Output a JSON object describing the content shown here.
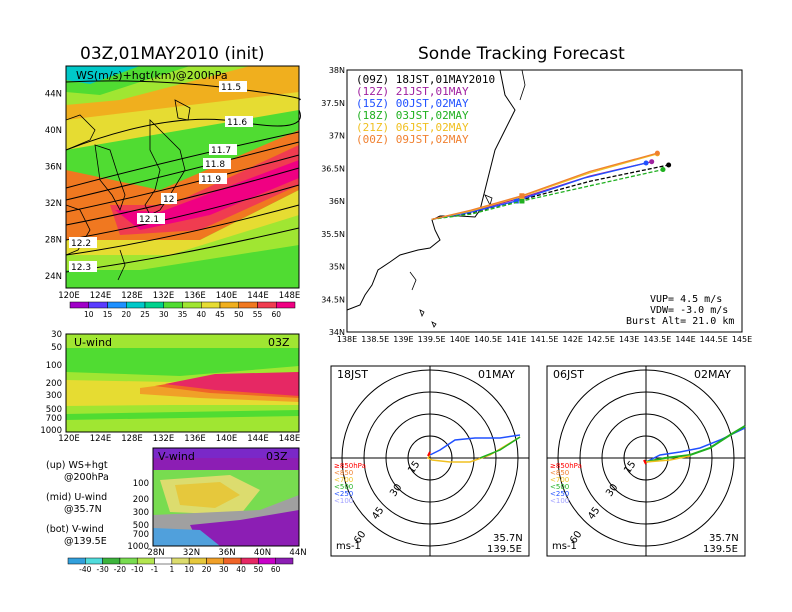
{
  "titles": {
    "left": "03Z,01MAY2010 (init)",
    "right": "Sonde Tracking Forecast"
  },
  "chart_data": [
    {
      "type": "heatmap",
      "panel": "ws_map",
      "title": "WS(m/s)+hgt(km)@200hPa",
      "x_ticks": [
        "120E",
        "124E",
        "128E",
        "132E",
        "136E",
        "140E",
        "144E",
        "148E"
      ],
      "y_ticks": [
        "24N",
        "28N",
        "32N",
        "36N",
        "40N",
        "44N"
      ],
      "xlim": [
        120,
        150
      ],
      "ylim": [
        22,
        48
      ],
      "contour_labels": [
        "11.5",
        "11.6",
        "11.7",
        "11.8",
        "11.9",
        "12",
        "12.1",
        "12.2",
        "12.3"
      ],
      "colorbar_ticks": [
        "10",
        "15",
        "20",
        "25",
        "30",
        "35",
        "40",
        "45",
        "50",
        "55",
        "60"
      ]
    },
    {
      "type": "heatmap",
      "panel": "u_wind",
      "title": "U-wind",
      "time_label": "03Z",
      "x_ticks": [
        "120E",
        "124E",
        "128E",
        "132E",
        "136E",
        "140E",
        "144E",
        "148E"
      ],
      "y_ticks": [
        "30",
        "50",
        "100",
        "200",
        "300",
        "500",
        "700",
        "1000"
      ]
    },
    {
      "type": "heatmap",
      "panel": "v_wind",
      "title": "V-wind",
      "time_label": "03Z",
      "x_ticks": [
        "28N",
        "32N",
        "36N",
        "40N",
        "44N"
      ],
      "y_ticks": [
        "100",
        "200",
        "300",
        "500",
        "700",
        "1000"
      ],
      "colorbar_ticks": [
        "-40",
        "-30",
        "-20",
        "-10",
        "-1",
        "1",
        "10",
        "20",
        "30",
        "40",
        "50",
        "60"
      ]
    },
    {
      "type": "line",
      "panel": "tracking",
      "x_ticks": [
        "138E",
        "138.5E",
        "139E",
        "139.5E",
        "140E",
        "140.5E",
        "141E",
        "141.5E",
        "142E",
        "142.5E",
        "143E",
        "143.5E",
        "144E",
        "144.5E",
        "145E"
      ],
      "y_ticks": [
        "34N",
        "34.5N",
        "35N",
        "35.5N",
        "36N",
        "36.5N",
        "37N",
        "37.5N",
        "38N"
      ],
      "xlim": [
        138,
        145
      ],
      "ylim": [
        34,
        38
      ],
      "series": [
        {
          "name": "(09Z) 18JST,01MAY2010",
          "color": "#000000",
          "x": [
            139.5,
            140.2,
            141.1,
            142.3,
            143.7
          ],
          "y": [
            35.72,
            35.82,
            36.02,
            36.3,
            36.55
          ]
        },
        {
          "name": "(12Z) 21JST,01MAY",
          "color": "#a020a0",
          "x": [
            139.5,
            140.2,
            141.1,
            142.3,
            143.4
          ],
          "y": [
            35.72,
            35.84,
            36.05,
            36.38,
            36.6
          ]
        },
        {
          "name": "(15Z) 00JST,02MAY",
          "color": "#2050ff",
          "x": [
            139.5,
            140.2,
            141.0,
            142.2,
            143.3
          ],
          "y": [
            35.72,
            35.83,
            36.0,
            36.35,
            36.58
          ]
        },
        {
          "name": "(18Z) 03JST,02MAY",
          "color": "#20b020",
          "x": [
            139.5,
            140.2,
            141.1,
            142.4,
            143.6
          ],
          "y": [
            35.72,
            35.8,
            36.0,
            36.25,
            36.48
          ]
        },
        {
          "name": "(21Z) 06JST,02MAY",
          "color": "#f0c020",
          "x": [
            139.5,
            140.2,
            141.1,
            142.3,
            143.5
          ],
          "y": [
            35.72,
            35.85,
            36.07,
            36.43,
            36.72
          ]
        },
        {
          "name": "(00Z) 09JST,02MAY",
          "color": "#f08030",
          "x": [
            139.5,
            140.2,
            141.1,
            142.3,
            143.5
          ],
          "y": [
            35.72,
            35.86,
            36.08,
            36.45,
            36.73
          ]
        }
      ],
      "annotations": [
        "VUP= 4.5 m/s",
        "VDW= -3.0 m/s",
        "Burst Alt= 21.0 km"
      ]
    }
  ],
  "ws_contours": [
    {
      "label": "11.5",
      "lat": 46.2
    },
    {
      "label": "11.6",
      "lat": 41.6
    },
    {
      "label": "11.7",
      "lat": 38.0
    },
    {
      "label": "11.8",
      "lat": 36.2
    },
    {
      "label": "11.9",
      "lat": 34.6
    },
    {
      "label": "12",
      "lat": 32.4
    },
    {
      "label": "12.1",
      "lat": 30.0
    },
    {
      "label": "12.2",
      "lat": 27.4
    },
    {
      "label": "12.3",
      "lat": 24.6
    }
  ],
  "ws_bar_colors": [
    "#a000c8",
    "#5a3cff",
    "#1e90ff",
    "#00c8c8",
    "#00d28c",
    "#50dc32",
    "#a0e632",
    "#e6dc32",
    "#f0af1e",
    "#f07820",
    "#f03c50",
    "#f00082"
  ],
  "v_bar_colors": [
    "#32a0dc",
    "#50dcdc",
    "#3cb43c",
    "#78dc50",
    "#b4e650",
    "#ffffff",
    "#dcdc6e",
    "#e6c83c",
    "#f0a028",
    "#f06428",
    "#e62864",
    "#c800c8",
    "#8c1eb4"
  ],
  "hodographs": [
    {
      "jst": "18JST",
      "date": "01MAY",
      "lat": "35.7N",
      "lon": "139.5E",
      "unit": "ms-1",
      "rings": [
        "15",
        "30",
        "45",
        "60"
      ],
      "legend": [
        "≥850hPa",
        "<850",
        "<700",
        "<500",
        "<250",
        "<100"
      ]
    },
    {
      "jst": "06JST",
      "date": "02MAY",
      "lat": "35.7N",
      "lon": "139.5E",
      "unit": "ms-1",
      "rings": [
        "15",
        "30",
        "45",
        "60"
      ],
      "legend": [
        "≥850hPa",
        "<850",
        "<700",
        "<500",
        "<250",
        "<100"
      ]
    }
  ],
  "notes": [
    {
      "head": "(up) WS+hgt",
      "sub": "@200hPa"
    },
    {
      "head": "(mid) U-wind",
      "sub": "@35.7N"
    },
    {
      "head": "(bot) V-wind",
      "sub": "@139.5E"
    }
  ],
  "colors": {
    "legend": [
      "#ff0000",
      "#f08030",
      "#f0c020",
      "#20b020",
      "#2050ff",
      "#a0a0ff"
    ]
  }
}
